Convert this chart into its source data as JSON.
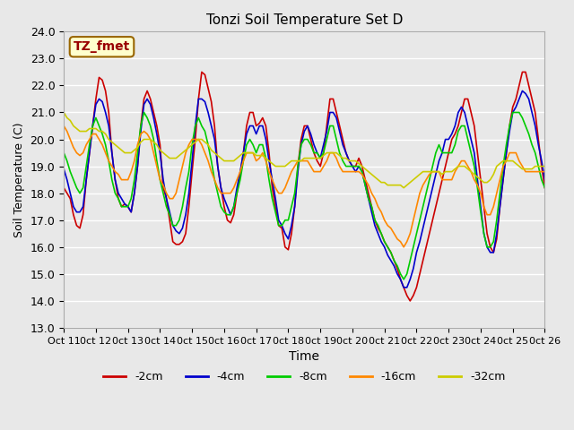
{
  "title": "Tonzi Soil Temperature Set D",
  "xlabel": "Time",
  "ylabel": "Soil Temperature (C)",
  "ylim": [
    13.0,
    24.0
  ],
  "yticks": [
    13.0,
    14.0,
    15.0,
    16.0,
    17.0,
    18.0,
    19.0,
    20.0,
    21.0,
    22.0,
    23.0,
    24.0
  ],
  "xtick_labels": [
    "Oct 11",
    "0ct 12",
    "0ct 13",
    "0ct 14",
    "0ct 15",
    "0ct 16",
    "0ct 17",
    "0ct 18",
    "0ct 19",
    "0ct 20",
    "0ct 21",
    "0ct 22",
    "0ct 23",
    "0ct 24",
    "0ct 25",
    "0ct 26"
  ],
  "background_color": "#e8e8e8",
  "plot_bg_color": "#e8e8e8",
  "grid_color": "#ffffff",
  "annotation_text": "TZ_fmet",
  "annotation_bg": "#ffffcc",
  "annotation_fg": "#990000",
  "series": {
    "2cm": {
      "color": "#cc0000",
      "label": "-2cm"
    },
    "4cm": {
      "color": "#0000cc",
      "label": "-4cm"
    },
    "8cm": {
      "color": "#00cc00",
      "label": "-8cm"
    },
    "16cm": {
      "color": "#ff8800",
      "label": "-16cm"
    },
    "32cm": {
      "color": "#cccc00",
      "label": "-32cm"
    }
  },
  "x": [
    0,
    1,
    2,
    3,
    4,
    5,
    6,
    7,
    8,
    9,
    10,
    11,
    12,
    13,
    14,
    15,
    16,
    17,
    18,
    19,
    20,
    21,
    22,
    23,
    24,
    25,
    26,
    27,
    28,
    29,
    30,
    31,
    32,
    33,
    34,
    35,
    36,
    37,
    38,
    39,
    40,
    41,
    42,
    43,
    44,
    45,
    46,
    47,
    48,
    49,
    50,
    51,
    52,
    53,
    54,
    55,
    56,
    57,
    58,
    59,
    60,
    61,
    62,
    63,
    64,
    65,
    66,
    67,
    68,
    69,
    70,
    71,
    72,
    73,
    74,
    75,
    76,
    77,
    78,
    79,
    80,
    81,
    82,
    83,
    84,
    85,
    86,
    87,
    88,
    89,
    90,
    91,
    92,
    93,
    94,
    95,
    96,
    97,
    98,
    99,
    100,
    101,
    102,
    103,
    104,
    105,
    106,
    107,
    108,
    109,
    110,
    111,
    112,
    113,
    114,
    115,
    116,
    117,
    118,
    119,
    120,
    121,
    122,
    123,
    124,
    125,
    126,
    127,
    128,
    129,
    130,
    131,
    132,
    133,
    134,
    135,
    136,
    137,
    138,
    139,
    140,
    141,
    142,
    143,
    144,
    145,
    146,
    147,
    148,
    149,
    150
  ],
  "y_2cm": [
    18.2,
    18.0,
    17.8,
    17.2,
    16.8,
    16.7,
    17.2,
    18.5,
    19.5,
    20.5,
    21.5,
    22.3,
    22.2,
    21.8,
    21.0,
    19.5,
    18.5,
    17.8,
    17.5,
    17.6,
    17.5,
    17.3,
    18.0,
    19.0,
    20.5,
    21.5,
    21.8,
    21.5,
    21.0,
    20.5,
    19.8,
    18.2,
    17.8,
    17.0,
    16.2,
    16.1,
    16.1,
    16.2,
    16.5,
    17.5,
    18.8,
    20.0,
    21.5,
    22.5,
    22.4,
    21.9,
    21.4,
    20.5,
    19.0,
    18.2,
    17.5,
    17.0,
    16.9,
    17.2,
    18.0,
    18.7,
    19.5,
    20.5,
    21.0,
    21.0,
    20.5,
    20.6,
    20.8,
    20.5,
    19.5,
    18.2,
    17.5,
    16.8,
    16.7,
    16.0,
    15.9,
    16.5,
    17.5,
    19.0,
    20.0,
    20.5,
    20.5,
    20.0,
    19.5,
    19.2,
    19.0,
    19.5,
    20.5,
    21.5,
    21.5,
    21.0,
    20.5,
    20.0,
    19.5,
    19.2,
    19.0,
    19.0,
    19.3,
    19.0,
    18.5,
    18.0,
    17.5,
    17.0,
    16.7,
    16.5,
    16.2,
    16.0,
    15.8,
    15.5,
    15.2,
    14.8,
    14.5,
    14.2,
    14.0,
    14.2,
    14.5,
    15.0,
    15.5,
    16.0,
    16.5,
    17.0,
    17.5,
    18.0,
    18.5,
    19.0,
    19.5,
    20.0,
    20.2,
    20.5,
    21.0,
    21.5,
    21.5,
    21.0,
    20.5,
    19.5,
    18.5,
    17.5,
    16.5,
    16.0,
    15.8,
    16.3,
    17.5,
    18.5,
    19.5,
    20.5,
    21.2,
    21.5,
    22.0,
    22.5,
    22.5,
    22.0,
    21.5,
    21.0,
    20.0,
    19.0,
    18.2
  ],
  "y_4cm": [
    18.9,
    18.5,
    18.0,
    17.5,
    17.3,
    17.3,
    17.5,
    18.5,
    19.5,
    20.5,
    21.3,
    21.5,
    21.4,
    21.0,
    20.5,
    19.5,
    18.5,
    18.0,
    17.8,
    17.6,
    17.5,
    17.3,
    18.0,
    19.0,
    20.3,
    21.3,
    21.5,
    21.3,
    20.8,
    20.2,
    19.5,
    18.5,
    17.8,
    17.3,
    16.8,
    16.6,
    16.5,
    16.7,
    17.2,
    18.0,
    19.2,
    20.5,
    21.5,
    21.5,
    21.4,
    21.0,
    20.5,
    20.0,
    19.0,
    18.2,
    17.8,
    17.5,
    17.2,
    17.5,
    18.2,
    18.8,
    19.5,
    20.2,
    20.5,
    20.5,
    20.2,
    20.5,
    20.5,
    20.0,
    19.2,
    18.5,
    17.8,
    17.0,
    16.8,
    16.5,
    16.3,
    16.8,
    17.5,
    18.8,
    19.8,
    20.3,
    20.5,
    20.2,
    19.8,
    19.5,
    19.3,
    19.8,
    20.3,
    21.0,
    21.0,
    20.8,
    20.3,
    19.8,
    19.5,
    19.2,
    19.0,
    18.8,
    19.0,
    18.8,
    18.3,
    17.8,
    17.3,
    16.8,
    16.5,
    16.2,
    16.0,
    15.7,
    15.5,
    15.3,
    15.0,
    14.8,
    14.5,
    14.5,
    14.8,
    15.2,
    15.8,
    16.2,
    16.7,
    17.2,
    17.7,
    18.2,
    18.7,
    19.2,
    19.5,
    20.0,
    20.0,
    20.2,
    20.5,
    21.0,
    21.2,
    21.0,
    20.5,
    20.0,
    19.5,
    18.5,
    17.5,
    16.5,
    16.0,
    15.8,
    15.8,
    16.5,
    17.5,
    18.5,
    19.5,
    20.3,
    21.0,
    21.2,
    21.5,
    21.8,
    21.7,
    21.5,
    21.0,
    20.5,
    19.8,
    19.2,
    18.5
  ],
  "y_8cm": [
    19.5,
    19.2,
    18.8,
    18.5,
    18.2,
    18.0,
    18.2,
    19.0,
    19.8,
    20.5,
    20.8,
    20.5,
    20.2,
    19.8,
    19.2,
    18.5,
    18.0,
    17.8,
    17.5,
    17.5,
    17.5,
    17.8,
    18.5,
    19.5,
    20.5,
    21.0,
    20.8,
    20.5,
    20.0,
    19.2,
    18.5,
    18.0,
    17.5,
    17.2,
    16.8,
    16.8,
    17.0,
    17.5,
    18.2,
    18.8,
    19.8,
    20.5,
    20.8,
    20.5,
    20.3,
    19.8,
    19.2,
    18.5,
    18.0,
    17.5,
    17.3,
    17.2,
    17.2,
    17.5,
    18.0,
    18.5,
    19.2,
    19.8,
    20.0,
    19.8,
    19.5,
    19.8,
    19.8,
    19.3,
    18.5,
    17.8,
    17.3,
    16.8,
    16.8,
    17.0,
    17.0,
    17.5,
    18.0,
    19.0,
    19.8,
    20.0,
    20.0,
    19.8,
    19.5,
    19.5,
    19.3,
    19.5,
    20.0,
    20.5,
    20.5,
    20.0,
    19.5,
    19.2,
    19.0,
    19.0,
    19.0,
    19.0,
    19.0,
    18.8,
    18.3,
    17.8,
    17.5,
    17.0,
    16.8,
    16.5,
    16.2,
    16.0,
    15.8,
    15.5,
    15.3,
    15.0,
    14.8,
    15.0,
    15.5,
    16.0,
    16.5,
    17.0,
    17.5,
    18.0,
    18.5,
    19.0,
    19.5,
    19.8,
    19.5,
    19.5,
    19.5,
    19.5,
    19.8,
    20.3,
    20.5,
    20.5,
    20.0,
    19.5,
    19.0,
    18.2,
    17.3,
    16.5,
    16.0,
    16.0,
    16.2,
    17.0,
    18.0,
    19.0,
    19.8,
    20.5,
    21.0,
    21.0,
    21.0,
    20.8,
    20.5,
    20.2,
    19.8,
    19.5,
    19.0,
    18.5,
    18.2
  ],
  "y_16cm": [
    20.5,
    20.3,
    20.0,
    19.7,
    19.5,
    19.4,
    19.5,
    19.8,
    20.0,
    20.2,
    20.2,
    20.0,
    19.8,
    19.5,
    19.2,
    19.0,
    18.8,
    18.7,
    18.5,
    18.5,
    18.5,
    18.8,
    19.2,
    19.8,
    20.2,
    20.3,
    20.2,
    20.0,
    19.5,
    19.0,
    18.5,
    18.3,
    18.0,
    17.8,
    17.8,
    18.0,
    18.5,
    19.0,
    19.5,
    19.8,
    20.0,
    20.0,
    20.0,
    19.8,
    19.5,
    19.2,
    18.8,
    18.5,
    18.2,
    18.0,
    18.0,
    18.0,
    18.0,
    18.2,
    18.5,
    18.8,
    19.2,
    19.5,
    19.5,
    19.5,
    19.2,
    19.3,
    19.5,
    19.2,
    18.8,
    18.5,
    18.2,
    18.0,
    18.0,
    18.2,
    18.5,
    18.8,
    19.0,
    19.2,
    19.2,
    19.2,
    19.2,
    19.0,
    18.8,
    18.8,
    18.8,
    19.0,
    19.2,
    19.5,
    19.5,
    19.3,
    19.0,
    18.8,
    18.8,
    18.8,
    18.8,
    18.8,
    18.8,
    18.7,
    18.5,
    18.3,
    18.0,
    17.8,
    17.5,
    17.3,
    17.0,
    16.8,
    16.7,
    16.5,
    16.3,
    16.2,
    16.0,
    16.2,
    16.5,
    17.0,
    17.5,
    18.0,
    18.3,
    18.5,
    18.7,
    18.8,
    18.8,
    18.8,
    18.5,
    18.5,
    18.5,
    18.5,
    18.8,
    19.0,
    19.2,
    19.2,
    19.0,
    18.8,
    18.5,
    18.3,
    18.0,
    17.5,
    17.2,
    17.2,
    17.5,
    18.0,
    18.5,
    19.0,
    19.2,
    19.5,
    19.5,
    19.5,
    19.2,
    19.0,
    18.8,
    18.8,
    18.8,
    18.8,
    18.8,
    18.8,
    18.8
  ],
  "y_32cm": [
    21.0,
    20.8,
    20.7,
    20.5,
    20.4,
    20.3,
    20.3,
    20.3,
    20.4,
    20.4,
    20.4,
    20.3,
    20.3,
    20.2,
    20.0,
    19.9,
    19.8,
    19.7,
    19.6,
    19.5,
    19.5,
    19.5,
    19.6,
    19.7,
    19.9,
    20.0,
    20.0,
    20.0,
    19.9,
    19.8,
    19.6,
    19.5,
    19.4,
    19.3,
    19.3,
    19.3,
    19.4,
    19.5,
    19.6,
    19.7,
    19.8,
    19.9,
    20.0,
    20.0,
    19.9,
    19.8,
    19.6,
    19.5,
    19.4,
    19.3,
    19.2,
    19.2,
    19.2,
    19.2,
    19.3,
    19.4,
    19.5,
    19.5,
    19.5,
    19.5,
    19.4,
    19.4,
    19.4,
    19.3,
    19.2,
    19.1,
    19.0,
    19.0,
    19.0,
    19.0,
    19.1,
    19.2,
    19.2,
    19.2,
    19.2,
    19.3,
    19.3,
    19.3,
    19.3,
    19.3,
    19.3,
    19.4,
    19.5,
    19.5,
    19.5,
    19.5,
    19.4,
    19.3,
    19.3,
    19.2,
    19.2,
    19.2,
    19.1,
    19.0,
    18.9,
    18.8,
    18.7,
    18.6,
    18.5,
    18.4,
    18.4,
    18.3,
    18.3,
    18.3,
    18.3,
    18.3,
    18.2,
    18.3,
    18.4,
    18.5,
    18.6,
    18.7,
    18.8,
    18.8,
    18.8,
    18.8,
    18.8,
    18.8,
    18.7,
    18.8,
    18.8,
    18.8,
    18.9,
    19.0,
    19.0,
    19.0,
    18.9,
    18.8,
    18.7,
    18.6,
    18.5,
    18.4,
    18.4,
    18.5,
    18.7,
    19.0,
    19.1,
    19.2,
    19.2,
    19.2,
    19.2,
    19.1,
    19.0,
    18.9,
    18.9,
    18.9,
    18.9,
    19.0,
    19.0,
    19.0,
    19.0
  ]
}
